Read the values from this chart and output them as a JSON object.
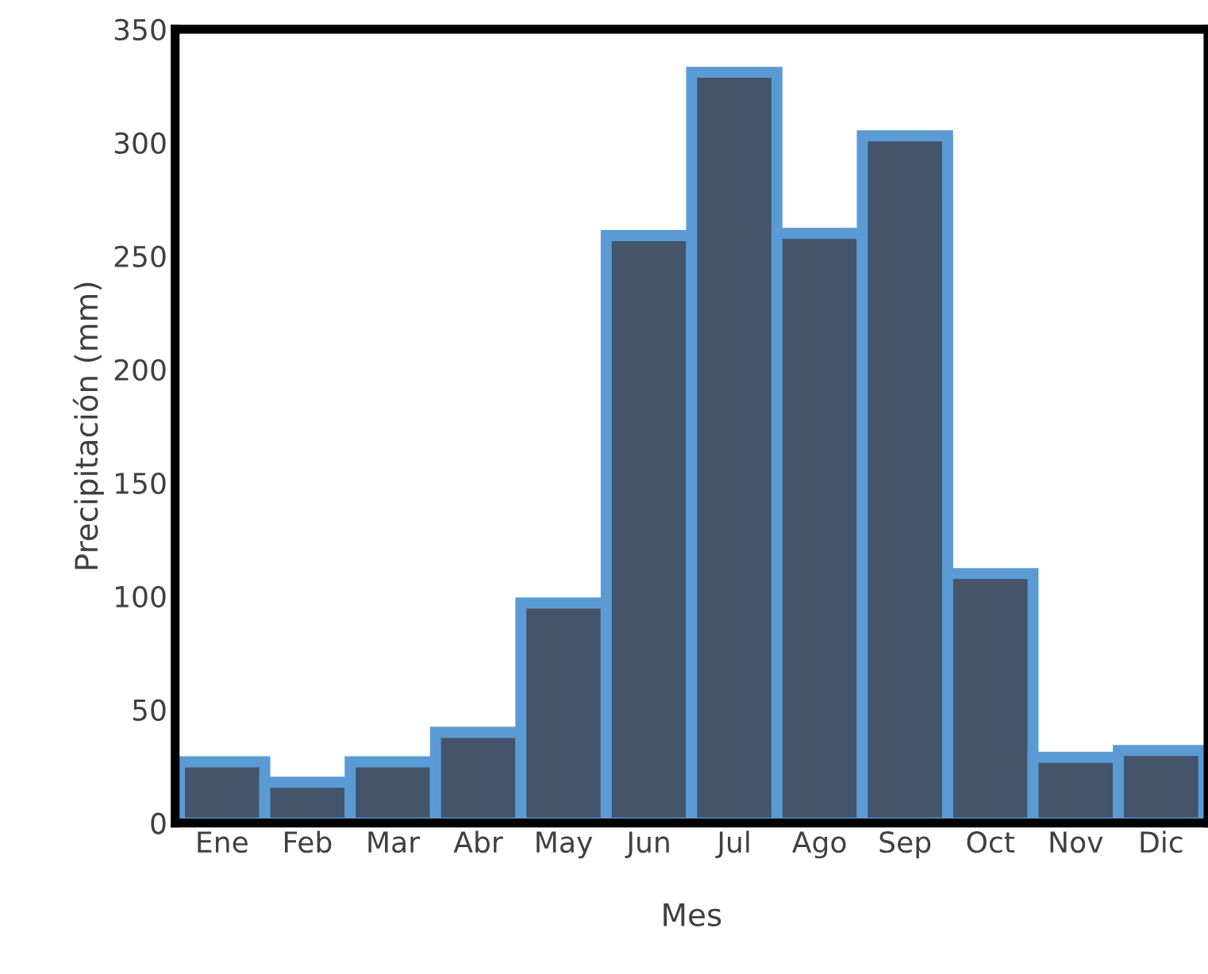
{
  "chart_data": {
    "type": "bar",
    "xlabel": "Mes",
    "ylabel": "Precipitación (mm)",
    "categories": [
      "Ene",
      "Feb",
      "Mar",
      "Abr",
      "May",
      "Jun",
      "Jul",
      "Ago",
      "Sep",
      "Oct",
      "Nov",
      "Dic"
    ],
    "series": [
      {
        "color": "#44546a",
        "values": [
          27,
          18,
          27,
          40,
          97,
          259,
          331,
          260,
          303,
          110,
          29,
          32
        ]
      }
    ],
    "ylim": [
      0,
      350
    ],
    "yticks": [
      0,
      50,
      100,
      150,
      200,
      250,
      300,
      350
    ],
    "grid": false,
    "legend": false
  }
}
